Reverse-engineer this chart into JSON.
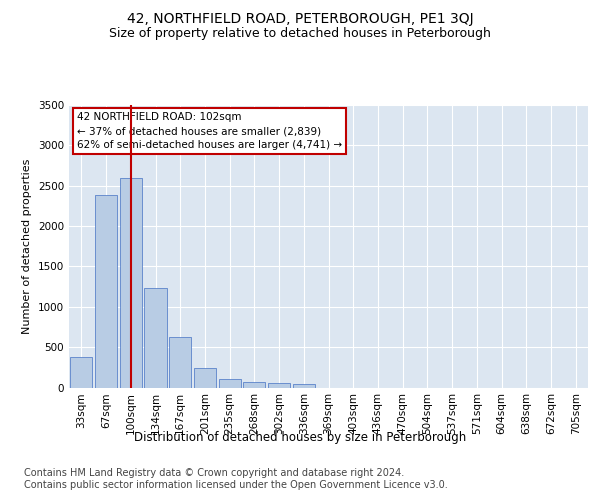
{
  "title1": "42, NORTHFIELD ROAD, PETERBOROUGH, PE1 3QJ",
  "title2": "Size of property relative to detached houses in Peterborough",
  "xlabel": "Distribution of detached houses by size in Peterborough",
  "ylabel": "Number of detached properties",
  "categories": [
    "33sqm",
    "67sqm",
    "100sqm",
    "134sqm",
    "167sqm",
    "201sqm",
    "235sqm",
    "268sqm",
    "302sqm",
    "336sqm",
    "369sqm",
    "403sqm",
    "436sqm",
    "470sqm",
    "504sqm",
    "537sqm",
    "571sqm",
    "604sqm",
    "638sqm",
    "672sqm",
    "705sqm"
  ],
  "values": [
    380,
    2390,
    2590,
    1230,
    620,
    240,
    100,
    65,
    55,
    40,
    0,
    0,
    0,
    0,
    0,
    0,
    0,
    0,
    0,
    0,
    0
  ],
  "bar_color": "#b8cce4",
  "bar_edge_color": "#4472c4",
  "vline_x": 2,
  "vline_color": "#c00000",
  "annotation_title": "42 NORTHFIELD ROAD: 102sqm",
  "annotation_line1": "← 37% of detached houses are smaller (2,839)",
  "annotation_line2": "62% of semi-detached houses are larger (4,741) →",
  "annotation_box_edge": "#c00000",
  "ylim": [
    0,
    3500
  ],
  "yticks": [
    0,
    500,
    1000,
    1500,
    2000,
    2500,
    3000,
    3500
  ],
  "footnote1": "Contains HM Land Registry data © Crown copyright and database right 2024.",
  "footnote2": "Contains public sector information licensed under the Open Government Licence v3.0.",
  "bg_color": "#dce6f1",
  "fig_bg_color": "#ffffff",
  "title1_fontsize": 10,
  "title2_fontsize": 9,
  "xlabel_fontsize": 8.5,
  "ylabel_fontsize": 8,
  "tick_fontsize": 7.5,
  "annotation_fontsize": 7.5,
  "footnote_fontsize": 7
}
